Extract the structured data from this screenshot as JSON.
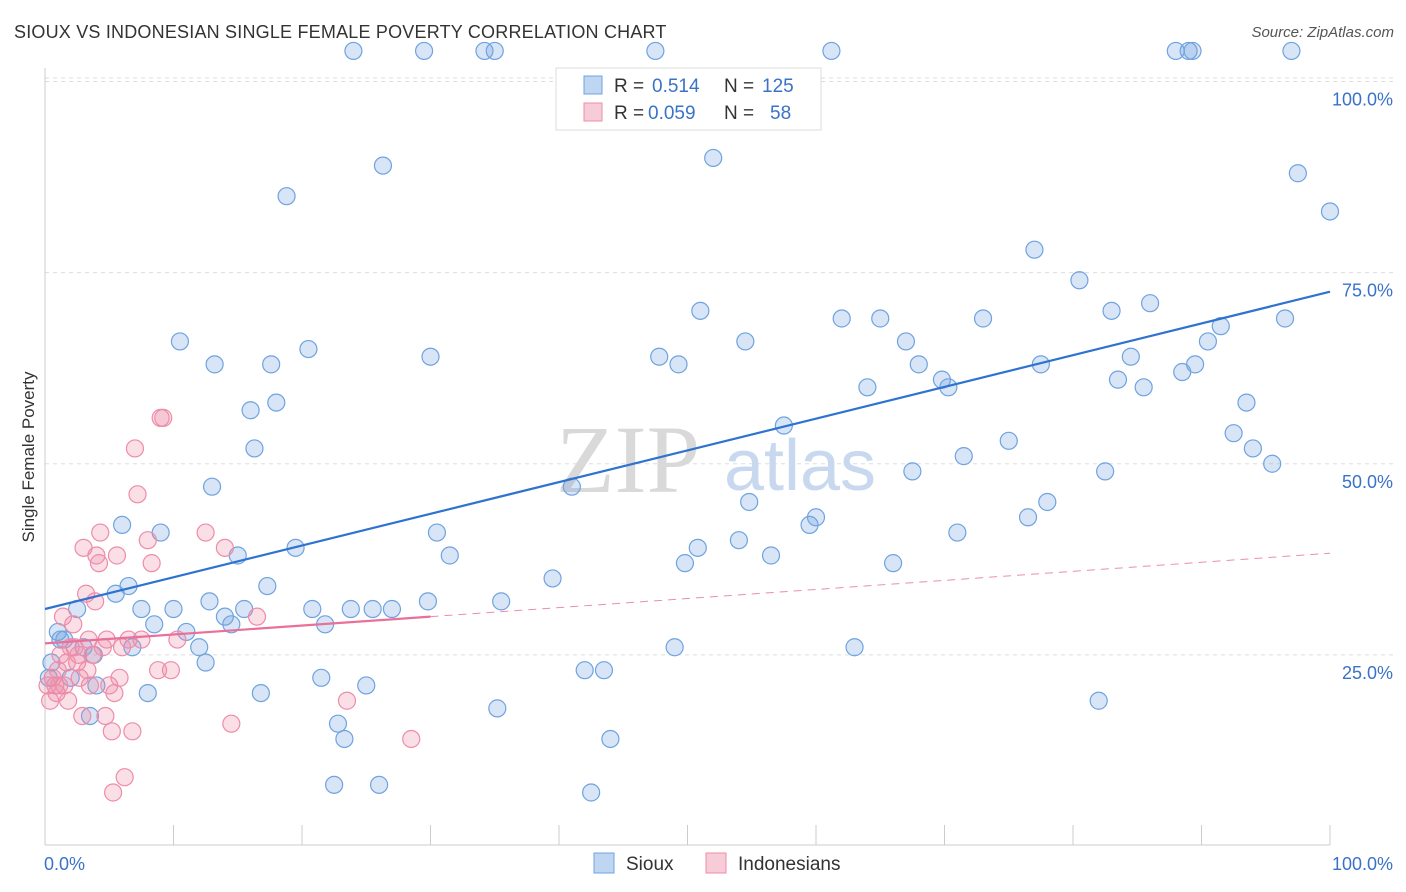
{
  "header": {
    "title": "SIOUX VS INDONESIAN SINGLE FEMALE POVERTY CORRELATION CHART",
    "source": "Source: ZipAtlas.com"
  },
  "watermark": {
    "zip": "ZIP",
    "atlas": "atlas"
  },
  "colors": {
    "sioux": "#6fa3e0",
    "sioux_fill": "rgba(111,163,224,0.28)",
    "sioux_line": "#2f73d0",
    "indonesians": "#ee8ca9",
    "indonesians_fill": "rgba(238,140,169,0.28)",
    "indonesians_line": "#e8709a",
    "value_text": "#3a72c8"
  },
  "legend_top": {
    "rows": [
      {
        "r_label": "R =",
        "r_value": "0.514",
        "n_label": "N =",
        "n_value": "125"
      },
      {
        "r_label": "R =",
        "r_value": "0.059",
        "n_label": "N =",
        "n_value": "58"
      }
    ]
  },
  "chart_data": {
    "type": "scatter",
    "title": "SIOUX VS INDONESIAN SINGLE FEMALE POVERTY CORRELATION CHART",
    "xlabel": "",
    "ylabel": "Single Female Poverty",
    "xlim": [
      0,
      100
    ],
    "ylim": [
      0,
      105
    ],
    "x_tick_labels": [
      "0.0%",
      "100.0%"
    ],
    "y_tick_labels": [
      "25.0%",
      "50.0%",
      "75.0%",
      "100.0%"
    ],
    "y_ticks": [
      25,
      50,
      75,
      100
    ],
    "grid": true,
    "legend_position": "bottom-center",
    "series": [
      {
        "name": "Sioux",
        "r": 0.514,
        "n": 125,
        "trend": {
          "x": [
            0,
            100
          ],
          "y": [
            31,
            72.5
          ]
        },
        "points": [
          [
            0.5,
            24
          ],
          [
            1.0,
            28
          ],
          [
            1.5,
            27
          ],
          [
            2.0,
            22
          ],
          [
            2.5,
            31
          ],
          [
            3.0,
            26
          ],
          [
            3.5,
            17
          ],
          [
            4.0,
            21
          ],
          [
            5.5,
            33
          ],
          [
            6.0,
            42
          ],
          [
            6.5,
            34
          ],
          [
            7.5,
            31
          ],
          [
            8.0,
            20
          ],
          [
            8.5,
            29
          ],
          [
            9.0,
            41
          ],
          [
            10.0,
            31
          ],
          [
            10.5,
            66
          ],
          [
            11.0,
            28
          ],
          [
            12.0,
            26
          ],
          [
            12.5,
            24
          ],
          [
            12.8,
            32
          ],
          [
            13.0,
            47
          ],
          [
            13.2,
            63
          ],
          [
            14.0,
            30
          ],
          [
            14.5,
            29
          ],
          [
            15.0,
            38
          ],
          [
            15.5,
            31
          ],
          [
            16.0,
            57
          ],
          [
            16.3,
            52
          ],
          [
            16.8,
            20
          ],
          [
            17.3,
            34
          ],
          [
            17.6,
            63
          ],
          [
            18.0,
            58
          ],
          [
            18.8,
            85
          ],
          [
            19.5,
            39
          ],
          [
            20.5,
            65
          ],
          [
            20.8,
            31
          ],
          [
            21.5,
            22
          ],
          [
            21.8,
            29
          ],
          [
            22.5,
            8
          ],
          [
            22.8,
            16
          ],
          [
            23.3,
            14
          ],
          [
            24.0,
            104
          ],
          [
            25.0,
            21
          ],
          [
            25.5,
            31
          ],
          [
            26.0,
            8
          ],
          [
            26.3,
            89
          ],
          [
            27.0,
            31
          ],
          [
            29.5,
            104
          ],
          [
            29.8,
            32
          ],
          [
            30.0,
            64
          ],
          [
            30.5,
            41
          ],
          [
            31.5,
            38
          ],
          [
            34.2,
            104
          ],
          [
            35.0,
            104
          ],
          [
            35.2,
            18
          ],
          [
            35.5,
            32
          ],
          [
            39.5,
            35
          ],
          [
            41.0,
            47
          ],
          [
            42.0,
            23
          ],
          [
            42.5,
            7
          ],
          [
            43.5,
            23
          ],
          [
            44.0,
            14
          ],
          [
            47.5,
            104
          ],
          [
            47.8,
            64
          ],
          [
            49.0,
            26
          ],
          [
            49.3,
            63
          ],
          [
            49.8,
            37
          ],
          [
            50.8,
            39
          ],
          [
            51.0,
            70
          ],
          [
            52.0,
            90
          ],
          [
            54.0,
            40
          ],
          [
            54.5,
            66
          ],
          [
            54.8,
            45
          ],
          [
            56.5,
            38
          ],
          [
            57.5,
            55
          ],
          [
            59.5,
            42
          ],
          [
            60.0,
            43
          ],
          [
            61.2,
            104
          ],
          [
            62.0,
            69
          ],
          [
            63.0,
            26
          ],
          [
            64.0,
            60
          ],
          [
            65.0,
            69
          ],
          [
            66.0,
            37
          ],
          [
            67.0,
            66
          ],
          [
            67.5,
            49
          ],
          [
            68.0,
            63
          ],
          [
            69.8,
            61
          ],
          [
            70.3,
            60
          ],
          [
            71.0,
            41
          ],
          [
            71.5,
            51
          ],
          [
            73.0,
            69
          ],
          [
            75.0,
            53
          ],
          [
            76.5,
            43
          ],
          [
            77.0,
            78
          ],
          [
            77.5,
            63
          ],
          [
            78.0,
            45
          ],
          [
            80.5,
            74
          ],
          [
            82.0,
            19
          ],
          [
            82.5,
            49
          ],
          [
            83.0,
            70
          ],
          [
            83.5,
            61
          ],
          [
            84.5,
            64
          ],
          [
            85.5,
            60
          ],
          [
            86.0,
            71
          ],
          [
            88.0,
            104
          ],
          [
            88.5,
            62
          ],
          [
            89.0,
            104
          ],
          [
            89.3,
            104
          ],
          [
            89.5,
            63
          ],
          [
            90.5,
            66
          ],
          [
            91.5,
            68
          ],
          [
            92.5,
            54
          ],
          [
            93.5,
            58
          ],
          [
            94.0,
            52
          ],
          [
            95.5,
            50
          ],
          [
            96.5,
            69
          ],
          [
            97.0,
            104
          ],
          [
            97.5,
            88
          ],
          [
            100.0,
            83
          ],
          [
            0.3,
            22
          ],
          [
            1.2,
            27
          ],
          [
            3.8,
            25
          ],
          [
            6.8,
            26
          ],
          [
            23.8,
            31
          ]
        ]
      },
      {
        "name": "Indonesians",
        "r": 0.059,
        "n": 58,
        "trend": {
          "x": [
            0,
            30
          ],
          "y": [
            26.5,
            30
          ]
        },
        "trend_dashed": {
          "x": [
            30,
            100
          ],
          "y": [
            30,
            38.3
          ]
        },
        "points": [
          [
            0.2,
            21
          ],
          [
            0.4,
            19
          ],
          [
            0.6,
            22
          ],
          [
            0.8,
            21
          ],
          [
            1.0,
            23
          ],
          [
            1.2,
            25
          ],
          [
            1.4,
            30
          ],
          [
            1.5,
            21
          ],
          [
            1.7,
            24
          ],
          [
            1.8,
            19
          ],
          [
            2.0,
            26
          ],
          [
            2.2,
            29
          ],
          [
            2.3,
            26
          ],
          [
            2.5,
            24
          ],
          [
            2.7,
            22
          ],
          [
            2.9,
            17
          ],
          [
            3.0,
            39
          ],
          [
            3.2,
            33
          ],
          [
            3.4,
            27
          ],
          [
            3.5,
            21
          ],
          [
            3.7,
            25
          ],
          [
            3.9,
            32
          ],
          [
            4.0,
            38
          ],
          [
            4.2,
            37
          ],
          [
            4.3,
            41
          ],
          [
            4.5,
            26
          ],
          [
            4.7,
            17
          ],
          [
            4.8,
            27
          ],
          [
            5.0,
            21
          ],
          [
            5.2,
            15
          ],
          [
            5.4,
            20
          ],
          [
            5.6,
            38
          ],
          [
            5.8,
            22
          ],
          [
            6.0,
            26
          ],
          [
            6.2,
            9
          ],
          [
            6.5,
            27
          ],
          [
            6.8,
            15
          ],
          [
            7.0,
            52
          ],
          [
            7.2,
            46
          ],
          [
            7.5,
            27
          ],
          [
            8.0,
            40
          ],
          [
            8.3,
            37
          ],
          [
            8.8,
            23
          ],
          [
            9.0,
            56
          ],
          [
            9.2,
            56
          ],
          [
            9.8,
            23
          ],
          [
            10.3,
            27
          ],
          [
            12.5,
            41
          ],
          [
            14.0,
            39
          ],
          [
            14.5,
            16
          ],
          [
            5.3,
            7
          ],
          [
            16.5,
            30
          ],
          [
            23.5,
            19
          ],
          [
            28.5,
            14
          ],
          [
            2.6,
            25
          ],
          [
            1.1,
            21
          ],
          [
            3.3,
            23
          ],
          [
            0.9,
            20
          ]
        ]
      }
    ]
  },
  "legend_bottom": {
    "items": [
      {
        "label": "Sioux"
      },
      {
        "label": "Indonesians"
      }
    ]
  }
}
